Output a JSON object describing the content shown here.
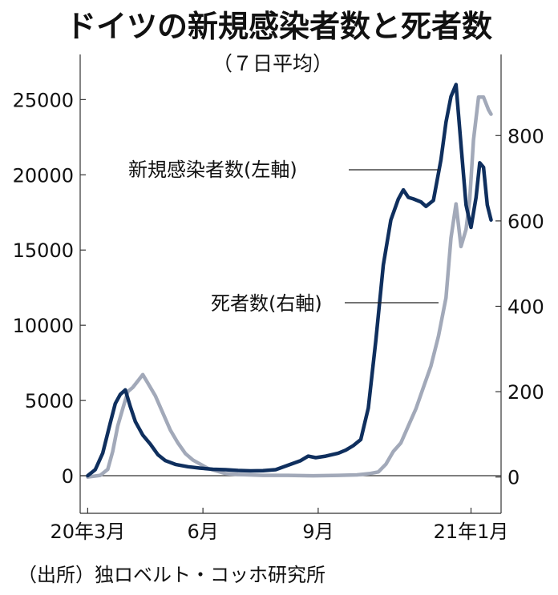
{
  "chart_data": {
    "type": "line",
    "title": "ドイツの新規感染者数と死者数",
    "subtitle": "（７日平均）",
    "source": "（出所）独ロベルト・コッホ研究所",
    "x_ticks": [
      {
        "label": "20年3月",
        "day": 0
      },
      {
        "label": "6月",
        "day": 92
      },
      {
        "label": "9月",
        "day": 184
      },
      {
        "label": "21年1月",
        "day": 306
      }
    ],
    "x_range": [
      -6,
      330
    ],
    "y_left": {
      "range": [
        -2500,
        28000
      ],
      "ticks": [
        "0",
        "5000",
        "10000",
        "15000",
        "20000",
        "25000"
      ],
      "tick_values": [
        0,
        5000,
        10000,
        15000,
        20000,
        25000
      ]
    },
    "y_right": {
      "range": [
        -85,
        990
      ],
      "ticks": [
        "0",
        "200",
        "400",
        "600",
        "800"
      ],
      "tick_values": [
        0,
        200,
        400,
        600,
        800
      ]
    },
    "series": [
      {
        "name": "新規感染者数(左軸)",
        "axis": "left",
        "color": "#0f2f5e",
        "points": [
          [
            0,
            0
          ],
          [
            6,
            400
          ],
          [
            12,
            1500
          ],
          [
            18,
            3500
          ],
          [
            22,
            4800
          ],
          [
            26,
            5400
          ],
          [
            30,
            5700
          ],
          [
            34,
            4600
          ],
          [
            38,
            3600
          ],
          [
            44,
            2700
          ],
          [
            50,
            2100
          ],
          [
            56,
            1400
          ],
          [
            62,
            1000
          ],
          [
            70,
            750
          ],
          [
            80,
            600
          ],
          [
            90,
            500
          ],
          [
            100,
            430
          ],
          [
            110,
            400
          ],
          [
            120,
            350
          ],
          [
            130,
            320
          ],
          [
            140,
            330
          ],
          [
            150,
            400
          ],
          [
            160,
            700
          ],
          [
            170,
            1000
          ],
          [
            176,
            1300
          ],
          [
            182,
            1200
          ],
          [
            190,
            1300
          ],
          [
            200,
            1500
          ],
          [
            206,
            1700
          ],
          [
            212,
            2000
          ],
          [
            218,
            2400
          ],
          [
            224,
            4500
          ],
          [
            230,
            9000
          ],
          [
            236,
            14000
          ],
          [
            242,
            17000
          ],
          [
            248,
            18400
          ],
          [
            252,
            19000
          ],
          [
            256,
            18500
          ],
          [
            260,
            18400
          ],
          [
            266,
            18200
          ],
          [
            270,
            17900
          ],
          [
            276,
            18300
          ],
          [
            282,
            21000
          ],
          [
            286,
            23500
          ],
          [
            290,
            25200
          ],
          [
            294,
            26000
          ],
          [
            298,
            22000
          ],
          [
            302,
            18000
          ],
          [
            306,
            16500
          ],
          [
            310,
            18500
          ],
          [
            313,
            20800
          ],
          [
            316,
            20500
          ],
          [
            319,
            18000
          ],
          [
            322,
            17000
          ]
        ]
      },
      {
        "name": "死者数(右軸)",
        "axis": "right",
        "color": "#a2a9b9",
        "points": [
          [
            0,
            0
          ],
          [
            10,
            4
          ],
          [
            16,
            18
          ],
          [
            20,
            60
          ],
          [
            24,
            120
          ],
          [
            28,
            160
          ],
          [
            32,
            200
          ],
          [
            36,
            210
          ],
          [
            40,
            225
          ],
          [
            44,
            240
          ],
          [
            48,
            220
          ],
          [
            54,
            190
          ],
          [
            60,
            150
          ],
          [
            66,
            110
          ],
          [
            72,
            80
          ],
          [
            78,
            55
          ],
          [
            84,
            40
          ],
          [
            90,
            30
          ],
          [
            96,
            20
          ],
          [
            102,
            15
          ],
          [
            110,
            8
          ],
          [
            120,
            6
          ],
          [
            140,
            4
          ],
          [
            160,
            4
          ],
          [
            180,
            3
          ],
          [
            200,
            4
          ],
          [
            215,
            5
          ],
          [
            225,
            8
          ],
          [
            232,
            12
          ],
          [
            238,
            30
          ],
          [
            244,
            60
          ],
          [
            250,
            80
          ],
          [
            256,
            120
          ],
          [
            262,
            160
          ],
          [
            268,
            210
          ],
          [
            274,
            260
          ],
          [
            280,
            330
          ],
          [
            286,
            420
          ],
          [
            290,
            560
          ],
          [
            294,
            640
          ],
          [
            298,
            540
          ],
          [
            302,
            580
          ],
          [
            305,
            650
          ],
          [
            308,
            790
          ],
          [
            312,
            890
          ],
          [
            316,
            890
          ],
          [
            320,
            860
          ],
          [
            322,
            850
          ]
        ]
      }
    ],
    "annotations": [
      {
        "text": "新規感染者数(左軸)",
        "series": "新規感染者数(左軸)"
      },
      {
        "text": "死者数(右軸)",
        "series": "死者数(右軸)"
      }
    ]
  }
}
